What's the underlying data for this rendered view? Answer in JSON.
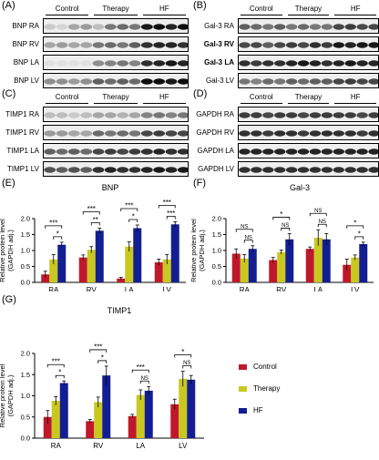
{
  "colors": {
    "control": "#c0182b",
    "therapy": "#c9c81f",
    "hf": "#131e92"
  },
  "groups": [
    "Control",
    "Therapy",
    "HF"
  ],
  "blots": [
    {
      "letter": "(A)",
      "rows": [
        "BNP RA",
        "BNP RV",
        "BNP LA",
        "BNP LV"
      ],
      "bold": [
        false,
        false,
        false,
        false
      ]
    },
    {
      "letter": "(B)",
      "rows": [
        "Gal-3 RA",
        "Gal-3 RV",
        "Gal-3 LA",
        "Gal-3 LV"
      ],
      "bold": [
        false,
        true,
        true,
        false
      ]
    },
    {
      "letter": "(C)",
      "rows": [
        "TIMP1 RA",
        "TIMP1 RV",
        "TIMP1 LA",
        "TIMP1 LV"
      ],
      "bold": [
        false,
        false,
        false,
        false
      ]
    },
    {
      "letter": "(D)",
      "rows": [
        "GAPDH RA",
        "GAPDH RV",
        "GAPDH LA",
        "GAPDH LV"
      ],
      "bold": [
        false,
        false,
        false,
        false
      ]
    }
  ],
  "legend": [
    "Control",
    "Therapy",
    "HF"
  ],
  "chart_data": [
    {
      "letter": "(E)",
      "type": "bar",
      "title": "BNP",
      "ylabel": "Relative protein level",
      "ylabel2": "(GAPDH adj.)",
      "categories": [
        "RA",
        "RV",
        "LA",
        "LV"
      ],
      "ylim": [
        0,
        2.0
      ],
      "yticks": [
        "0.0",
        "0.5",
        "1.0",
        "1.5",
        "2.0"
      ],
      "series": [
        {
          "name": "Control",
          "values": [
            0.25,
            0.78,
            0.12,
            0.63
          ],
          "errors": [
            0.1,
            0.08,
            0.04,
            0.1
          ]
        },
        {
          "name": "Therapy",
          "values": [
            0.72,
            1.02,
            1.12,
            0.72
          ],
          "errors": [
            0.15,
            0.1,
            0.15,
            0.15
          ]
        },
        {
          "name": "HF",
          "values": [
            1.18,
            1.62,
            1.7,
            1.82
          ],
          "errors": [
            0.08,
            0.08,
            0.1,
            0.08
          ]
        }
      ],
      "brackets": [
        {
          "cat": 0,
          "from": 0,
          "to": 2,
          "level": 1,
          "label": "***"
        },
        {
          "cat": 0,
          "from": 1,
          "to": 2,
          "level": 0,
          "label": "*"
        },
        {
          "cat": 1,
          "from": 0,
          "to": 2,
          "level": 1,
          "label": "***"
        },
        {
          "cat": 1,
          "from": 1,
          "to": 2,
          "level": 0,
          "label": "**"
        },
        {
          "cat": 2,
          "from": 0,
          "to": 2,
          "level": 1,
          "label": "***"
        },
        {
          "cat": 2,
          "from": 1,
          "to": 2,
          "level": 0,
          "label": "*"
        },
        {
          "cat": 3,
          "from": 0,
          "to": 2,
          "level": 1,
          "label": "***"
        },
        {
          "cat": 3,
          "from": 1,
          "to": 2,
          "level": 0,
          "label": "***"
        }
      ]
    },
    {
      "letter": "(F)",
      "type": "bar",
      "title": "Gal-3",
      "ylabel": "Relative protein level",
      "ylabel2": "(GAPDH adj.)",
      "categories": [
        "RA",
        "RV",
        "LA",
        "LV"
      ],
      "ylim": [
        0,
        2.0
      ],
      "yticks": [
        "0.0",
        "0.5",
        "1.0",
        "1.5",
        "2.0"
      ],
      "series": [
        {
          "name": "Control",
          "values": [
            0.9,
            0.7,
            1.05,
            0.55
          ],
          "errors": [
            0.15,
            0.08,
            0.06,
            0.18
          ]
        },
        {
          "name": "Therapy",
          "values": [
            0.75,
            0.95,
            1.4,
            0.78
          ],
          "errors": [
            0.12,
            0.06,
            0.25,
            0.08
          ]
        },
        {
          "name": "HF",
          "values": [
            1.05,
            1.35,
            1.35,
            1.2
          ],
          "errors": [
            0.1,
            0.18,
            0.18,
            0.06
          ]
        }
      ],
      "brackets": [
        {
          "cat": 0,
          "from": 0,
          "to": 2,
          "level": 1,
          "label": "NS"
        },
        {
          "cat": 0,
          "from": 1,
          "to": 2,
          "level": 0,
          "label": "NS"
        },
        {
          "cat": 1,
          "from": 0,
          "to": 2,
          "level": 1,
          "label": "*"
        },
        {
          "cat": 1,
          "from": 1,
          "to": 2,
          "level": 0,
          "label": "NS"
        },
        {
          "cat": 2,
          "from": 0,
          "to": 2,
          "level": 1,
          "label": "NS"
        },
        {
          "cat": 2,
          "from": 1,
          "to": 2,
          "level": 0,
          "label": "NS"
        },
        {
          "cat": 3,
          "from": 0,
          "to": 2,
          "level": 1,
          "label": "*"
        },
        {
          "cat": 3,
          "from": 1,
          "to": 2,
          "level": 0,
          "label": "*"
        }
      ]
    },
    {
      "letter": "(G)",
      "type": "bar",
      "title": "TIMP1",
      "ylabel": "Relative protein level",
      "ylabel2": "(GAPDH adj.)",
      "categories": [
        "RA",
        "RV",
        "LA",
        "LV"
      ],
      "ylim": [
        0,
        2.0
      ],
      "yticks": [
        "0.0",
        "0.5",
        "1.0",
        "1.5",
        "2.0"
      ],
      "series": [
        {
          "name": "Control",
          "values": [
            0.5,
            0.4,
            0.52,
            0.8
          ],
          "errors": [
            0.15,
            0.04,
            0.04,
            0.12
          ]
        },
        {
          "name": "Therapy",
          "values": [
            0.88,
            0.85,
            1.02,
            1.4
          ],
          "errors": [
            0.1,
            0.12,
            0.12,
            0.18
          ]
        },
        {
          "name": "HF",
          "values": [
            1.3,
            1.48,
            1.12,
            1.38
          ],
          "errors": [
            0.05,
            0.22,
            0.1,
            0.1
          ]
        }
      ],
      "brackets": [
        {
          "cat": 0,
          "from": 0,
          "to": 2,
          "level": 1,
          "label": "***"
        },
        {
          "cat": 0,
          "from": 1,
          "to": 2,
          "level": 0,
          "label": "*"
        },
        {
          "cat": 1,
          "from": 0,
          "to": 2,
          "level": 1,
          "label": "***"
        },
        {
          "cat": 1,
          "from": 1,
          "to": 2,
          "level": 0,
          "label": "*"
        },
        {
          "cat": 2,
          "from": 0,
          "to": 2,
          "level": 1,
          "label": "***"
        },
        {
          "cat": 2,
          "from": 1,
          "to": 2,
          "level": 0,
          "label": "NS"
        },
        {
          "cat": 3,
          "from": 0,
          "to": 2,
          "level": 1,
          "label": "*"
        },
        {
          "cat": 3,
          "from": 1,
          "to": 2,
          "level": 0,
          "label": "NS"
        }
      ]
    }
  ]
}
